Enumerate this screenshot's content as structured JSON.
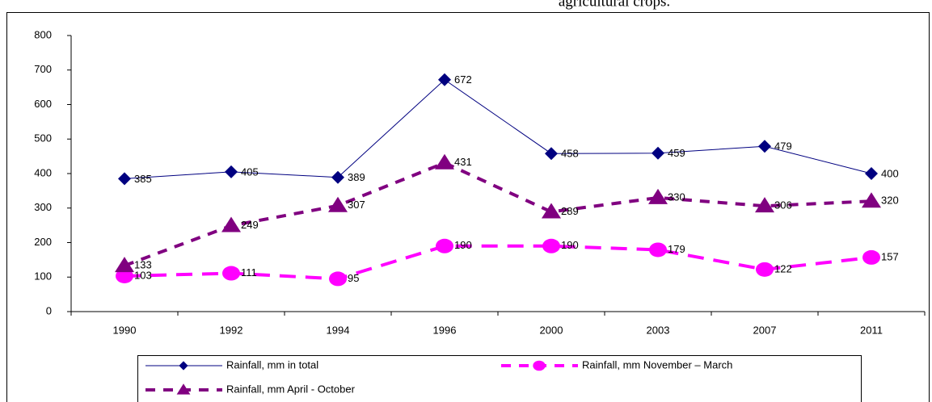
{
  "chart_data": {
    "type": "line",
    "title": "agricultural crops.",
    "categories": [
      "1990",
      "1992",
      "1994",
      "1996",
      "2000",
      "2003",
      "2007",
      "2011"
    ],
    "series": [
      {
        "name": "Rainfall, mm in total",
        "color": "#000080",
        "marker": "diamond",
        "dashed": false,
        "values": [
          385,
          405,
          389,
          672,
          458,
          459,
          479,
          400
        ]
      },
      {
        "name": "Rainfall, mm November – March",
        "color": "#ff00ff",
        "marker": "circle",
        "dashed": true,
        "values": [
          103,
          111,
          95,
          190,
          190,
          179,
          122,
          157
        ]
      },
      {
        "name": "Rainfall, mm April - October",
        "color": "#800080",
        "marker": "triangle",
        "dashed": true,
        "values": [
          133,
          249,
          307,
          431,
          289,
          330,
          306,
          320
        ]
      }
    ],
    "ylim": [
      0,
      800
    ],
    "yticks": [
      0,
      100,
      200,
      300,
      400,
      500,
      600,
      700,
      800
    ],
    "grid": false
  }
}
